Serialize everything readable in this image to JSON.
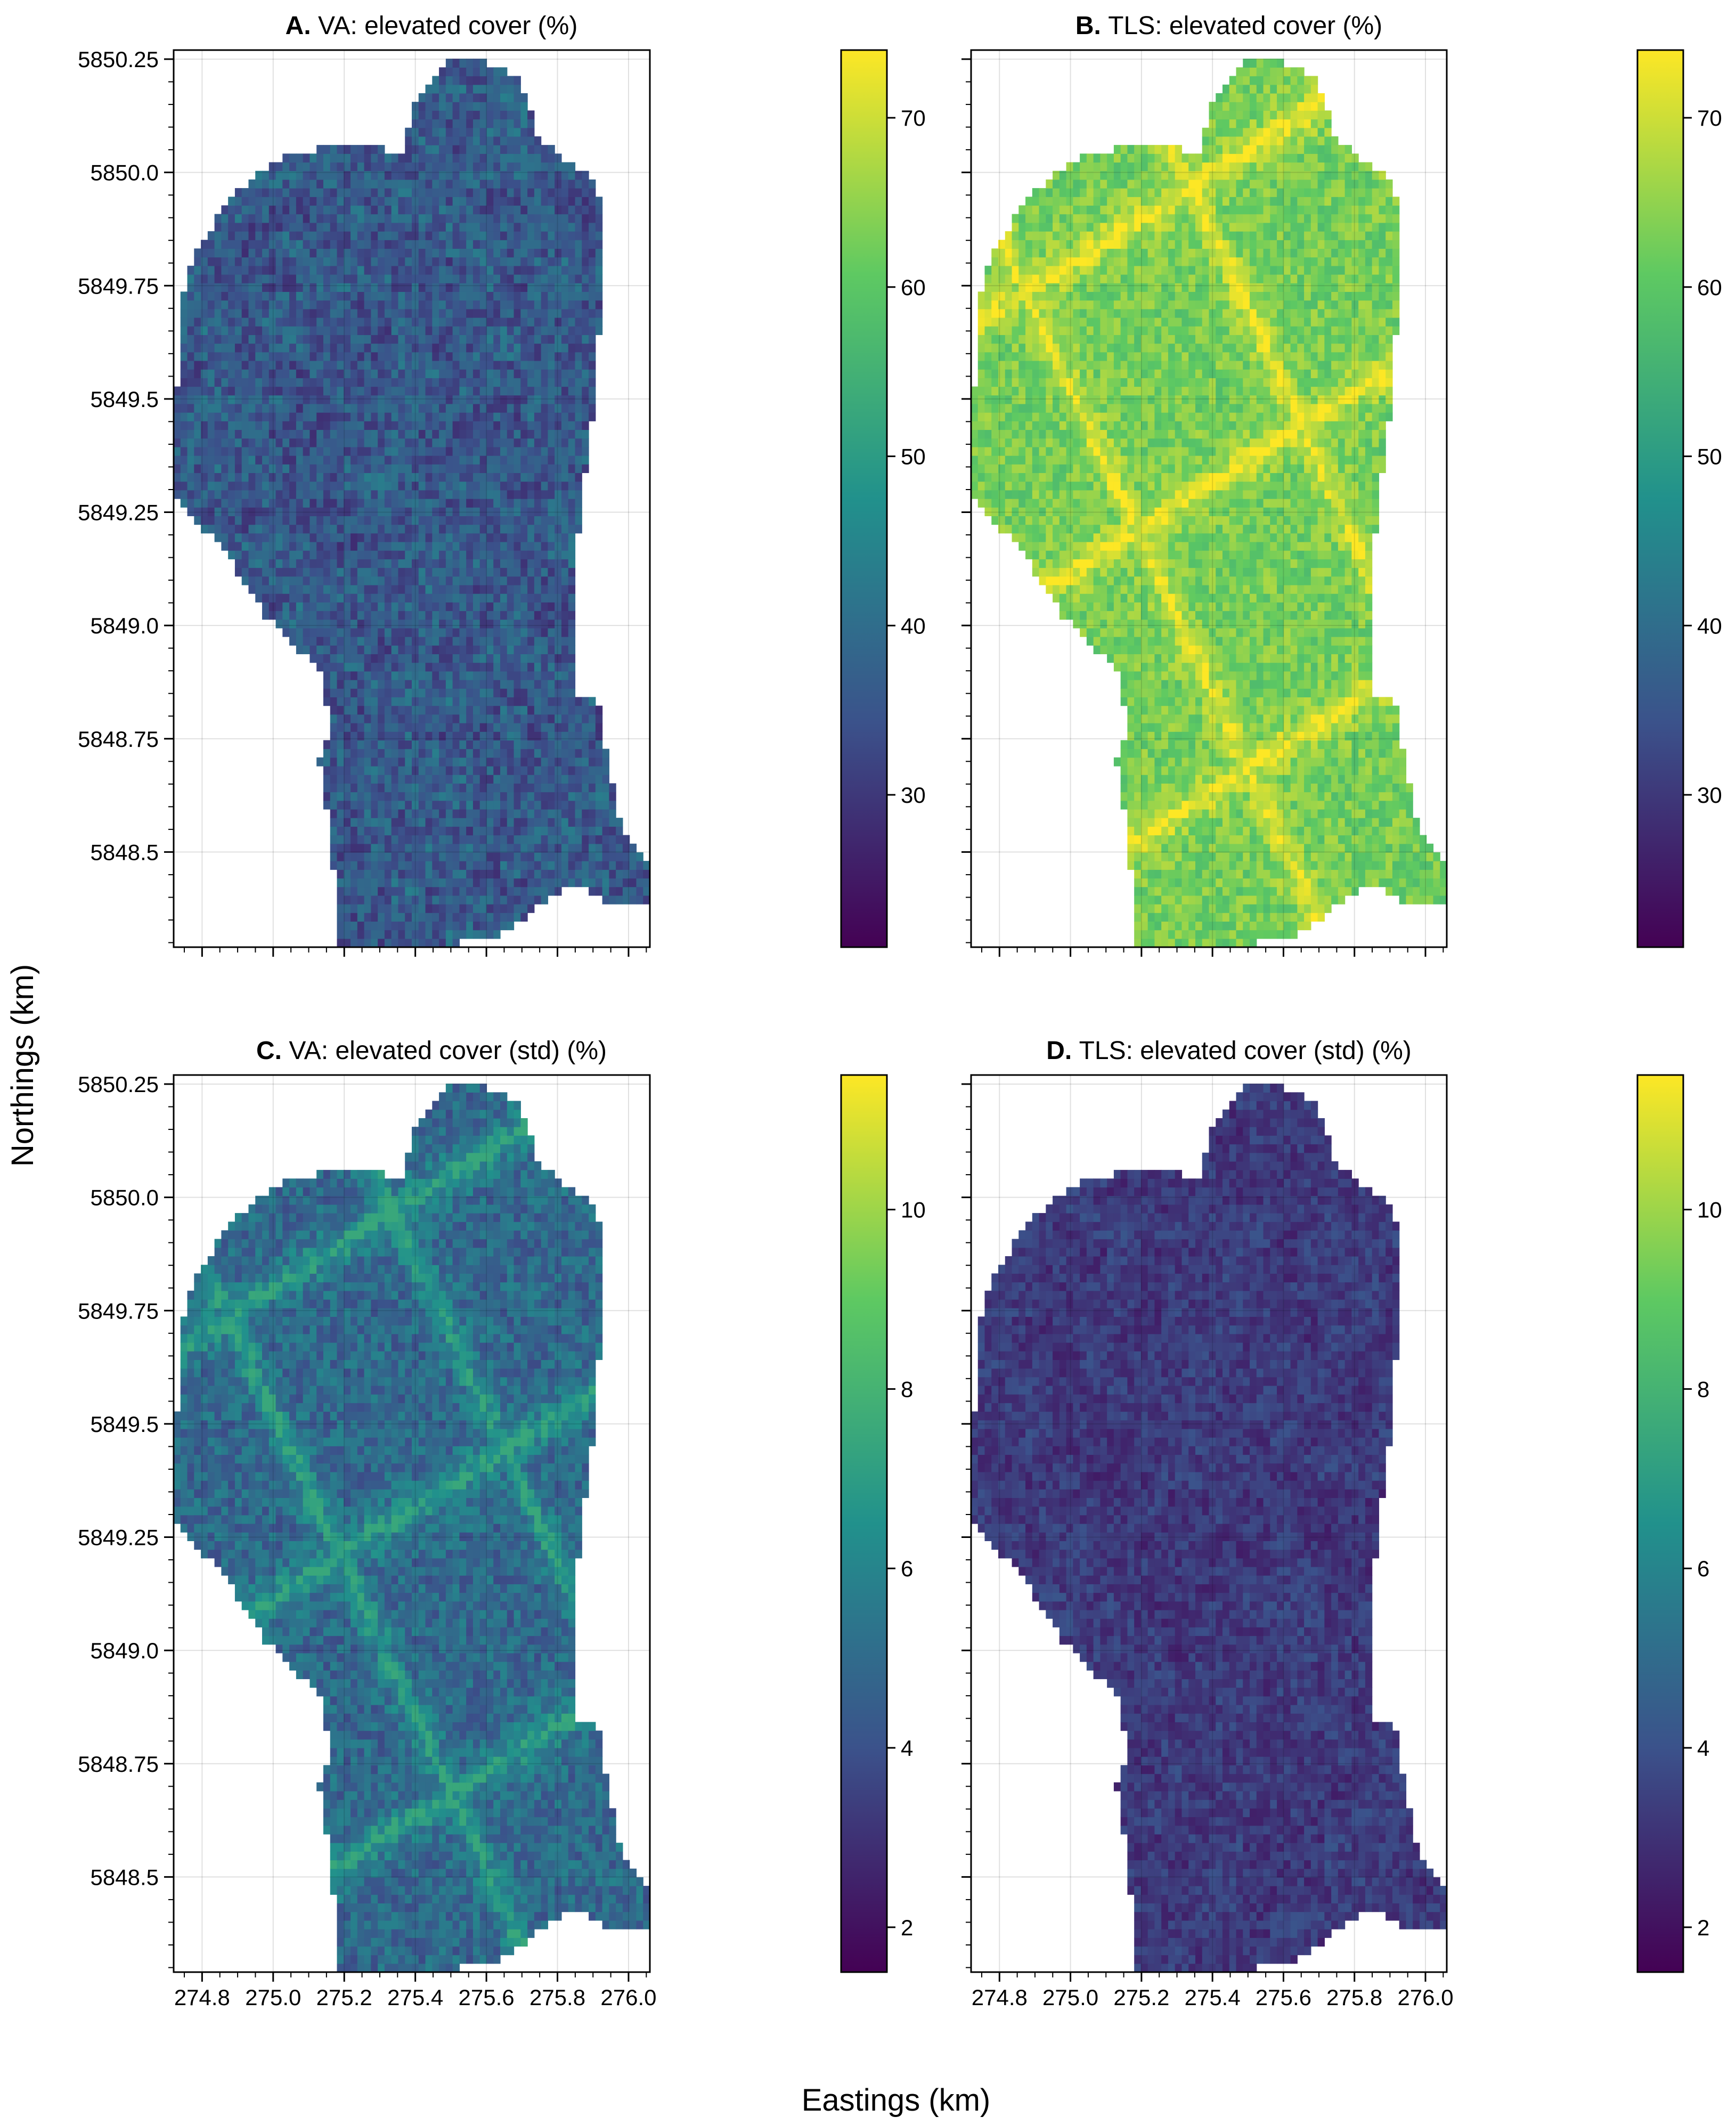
{
  "figure": {
    "xlabel": "Eastings (km)",
    "ylabel": "Northings (km)",
    "colormap": [
      "#440154",
      "#3b528b",
      "#21918c",
      "#5ec962",
      "#fde725"
    ]
  },
  "chart_data": [
    {
      "type": "heatmap",
      "panel_letter": "A.",
      "title": "VA: elevated cover (%)",
      "xlim": [
        274.72,
        276.06
      ],
      "ylim": [
        5848.29,
        5850.27
      ],
      "x_ticks": [
        274.8,
        275.0,
        275.2,
        275.4,
        275.6,
        275.8,
        276.0
      ],
      "x_tick_labels": [],
      "y_ticks": [
        5848.5,
        5848.75,
        5849.0,
        5849.25,
        5849.5,
        5849.75,
        5850.0,
        5850.25
      ],
      "y_tick_labels": [
        "5848.5",
        "5848.75",
        "5849.0",
        "5849.25",
        "5849.5",
        "5849.75",
        "5850.0",
        "5850.25"
      ],
      "grid": true,
      "colorbar": {
        "min": 21,
        "max": 74,
        "ticks": [
          30,
          40,
          50,
          60,
          70
        ],
        "tick_labels": [
          "30",
          "40",
          "50",
          "60",
          "70"
        ]
      },
      "value_range": [
        24,
        44
      ],
      "pattern": "uniform"
    },
    {
      "type": "heatmap",
      "panel_letter": "B.",
      "title": "TLS: elevated cover (%)",
      "xlim": [
        274.72,
        276.06
      ],
      "ylim": [
        5848.29,
        5850.27
      ],
      "x_ticks": [
        274.8,
        275.0,
        275.2,
        275.4,
        275.6,
        275.8,
        276.0
      ],
      "x_tick_labels": [],
      "y_ticks": [
        5848.5,
        5848.75,
        5849.0,
        5849.25,
        5849.5,
        5849.75,
        5850.0,
        5850.25
      ],
      "y_tick_labels": [],
      "grid": true,
      "colorbar": {
        "min": 21,
        "max": 74,
        "ticks": [
          30,
          40,
          50,
          60,
          70
        ],
        "tick_labels": [
          "30",
          "40",
          "50",
          "60",
          "70"
        ]
      },
      "value_range": [
        52,
        74
      ],
      "pattern": "channels-high"
    },
    {
      "type": "heatmap",
      "panel_letter": "C.",
      "title": "VA: elevated cover (std) (%)",
      "xlim": [
        274.72,
        276.06
      ],
      "ylim": [
        5848.29,
        5850.27
      ],
      "x_ticks": [
        274.8,
        275.0,
        275.2,
        275.4,
        275.6,
        275.8,
        276.0
      ],
      "x_tick_labels": [
        "274.8",
        "275.0",
        "275.2",
        "275.4",
        "275.6",
        "275.8",
        "276.0"
      ],
      "y_ticks": [
        5848.5,
        5848.75,
        5849.0,
        5849.25,
        5849.5,
        5849.75,
        5850.0,
        5850.25
      ],
      "y_tick_labels": [
        "5848.5",
        "5848.75",
        "5849.0",
        "5849.25",
        "5849.5",
        "5849.75",
        "5850.0",
        "5850.25"
      ],
      "grid": true,
      "colorbar": {
        "min": 1.5,
        "max": 11.5,
        "ticks": [
          2,
          4,
          6,
          8,
          10
        ],
        "tick_labels": [
          "2",
          "4",
          "6",
          "8",
          "10"
        ]
      },
      "value_range": [
        2.5,
        7.5
      ],
      "pattern": "channels-high"
    },
    {
      "type": "heatmap",
      "panel_letter": "D.",
      "title": "TLS: elevated cover (std) (%)",
      "xlim": [
        274.72,
        276.06
      ],
      "ylim": [
        5848.29,
        5850.27
      ],
      "x_ticks": [
        274.8,
        275.0,
        275.2,
        275.4,
        275.6,
        275.8,
        276.0
      ],
      "x_tick_labels": [
        "274.8",
        "275.0",
        "275.2",
        "275.4",
        "275.6",
        "275.8",
        "276.0"
      ],
      "y_ticks": [
        5848.5,
        5848.75,
        5849.0,
        5849.25,
        5849.5,
        5849.75,
        5850.0,
        5850.25
      ],
      "y_tick_labels": [],
      "grid": true,
      "colorbar": {
        "min": 1.5,
        "max": 11.5,
        "ticks": [
          2,
          4,
          6,
          8,
          10
        ],
        "tick_labels": [
          "2",
          "4",
          "6",
          "8",
          "10"
        ]
      },
      "value_range": [
        1.8,
        4.2
      ],
      "pattern": "uniform"
    }
  ]
}
